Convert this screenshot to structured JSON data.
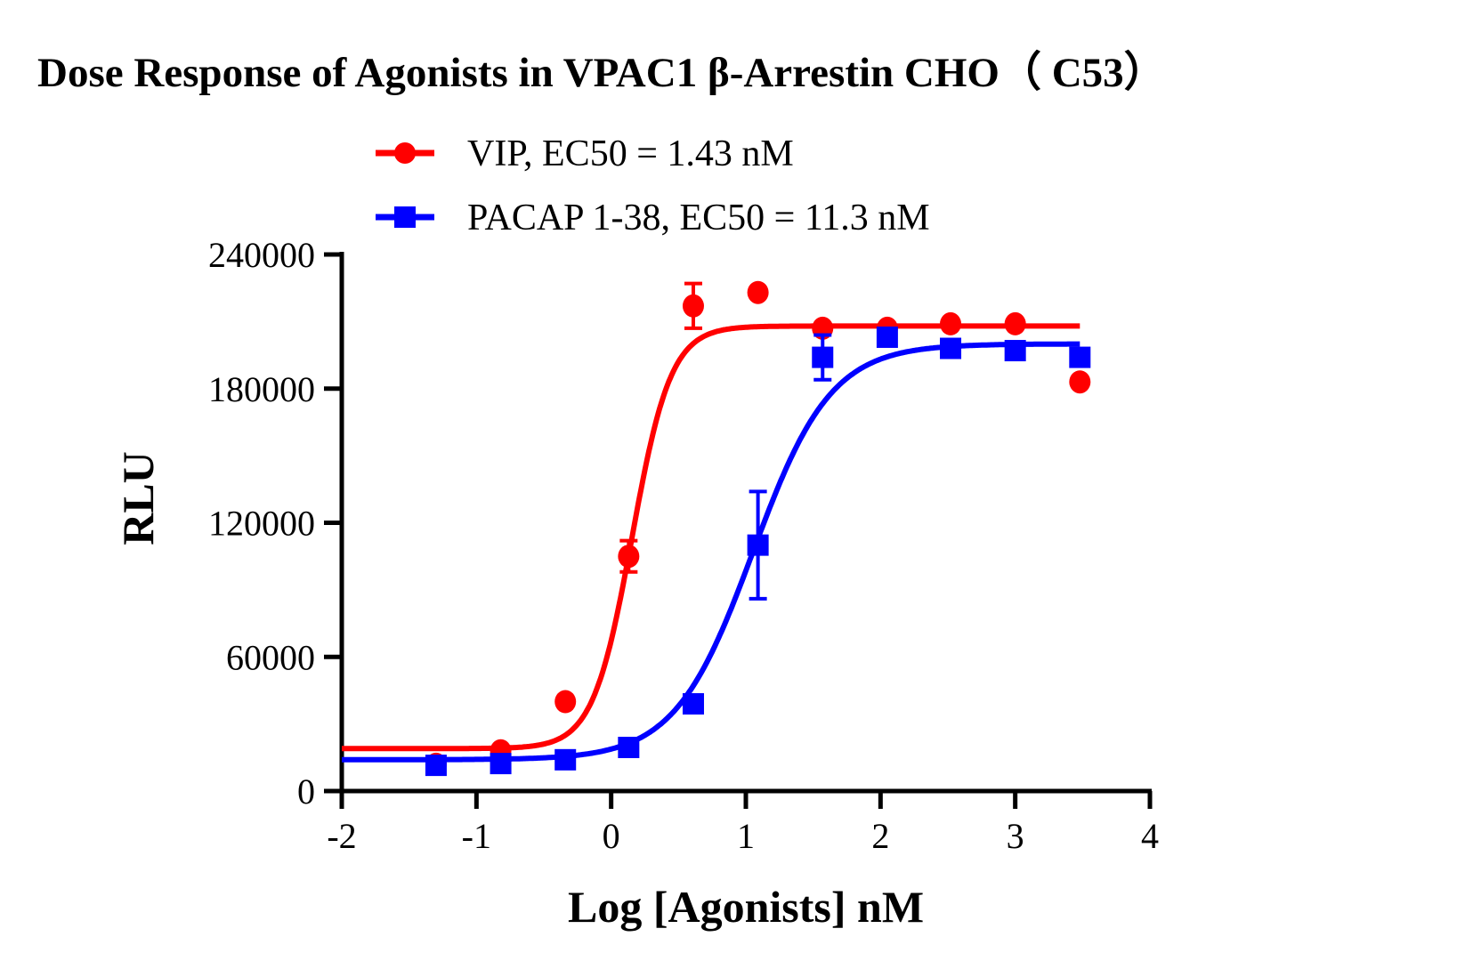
{
  "chart_data": {
    "type": "scatter",
    "title": "Dose Response of Agonists in VPAC1 β-Arrestin CHO（ C53）",
    "xlabel": "Log [Agonists] nM",
    "ylabel": "RLU",
    "xlim": [
      -2,
      4
    ],
    "ylim": [
      0,
      240000
    ],
    "xticks": [
      "-2",
      "-1",
      "0",
      "1",
      "2",
      "3",
      "4"
    ],
    "yticks": [
      "0",
      "60000",
      "120000",
      "180000",
      "240000"
    ],
    "grid": false,
    "legend_position": "top",
    "series": [
      {
        "name": "VIP, EC50 = 1.43 nM",
        "color": "#ff0000",
        "marker": "circle",
        "x": [
          -1.3,
          -0.82,
          -0.34,
          0.13,
          0.61,
          1.09,
          1.57,
          2.05,
          2.52,
          3.0,
          3.48
        ],
        "y": [
          12000,
          18000,
          40000,
          105000,
          217000,
          223000,
          207000,
          207000,
          209000,
          209000,
          183000
        ],
        "error": [
          0,
          0,
          0,
          7000,
          10000,
          0,
          0,
          0,
          0,
          0,
          0
        ],
        "fit": {
          "bottom": 19000,
          "top": 208000,
          "logEC50": 0.155,
          "hill": 3.0
        }
      },
      {
        "name": "PACAP 1-38, EC50 = 11.3 nM",
        "color": "#0000ff",
        "marker": "square",
        "x": [
          -1.3,
          -0.82,
          -0.34,
          0.13,
          0.61,
          1.09,
          1.57,
          2.05,
          2.52,
          3.0,
          3.48
        ],
        "y": [
          11500,
          12300,
          14000,
          19500,
          39000,
          110000,
          194000,
          203000,
          198000,
          197000,
          194000
        ],
        "error": [
          0,
          0,
          0,
          0,
          0,
          24000,
          10000,
          0,
          0,
          0,
          0
        ],
        "fit": {
          "bottom": 14000,
          "top": 200000,
          "logEC50": 1.053,
          "hill": 1.5
        }
      }
    ]
  }
}
